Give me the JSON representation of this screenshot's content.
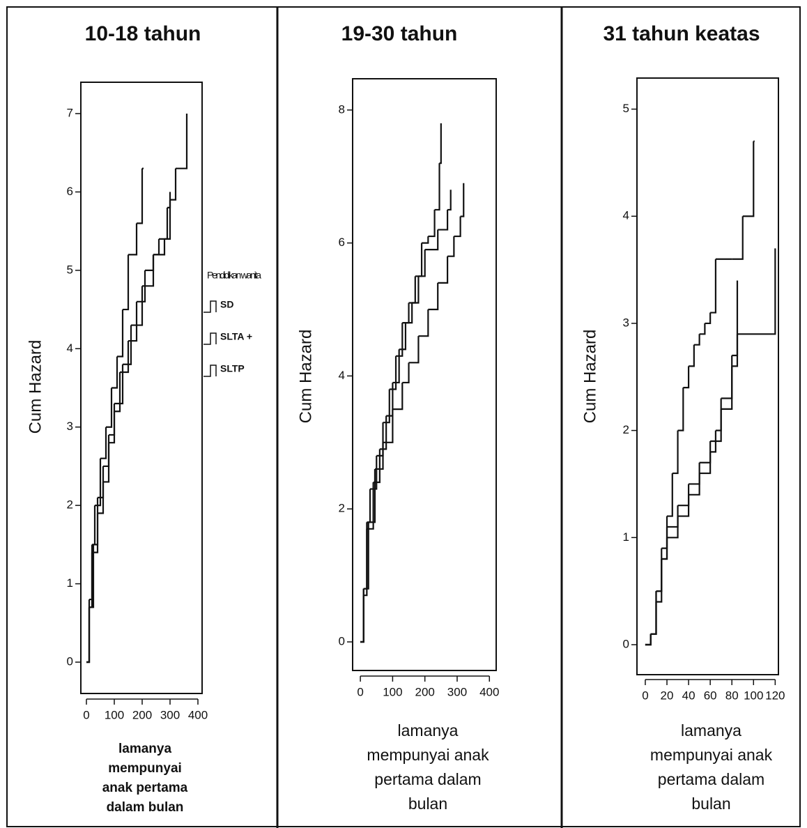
{
  "chart_data": [
    {
      "type": "step",
      "title": "10-18 tahun",
      "y_label": "Cum Hazard",
      "x_label": [
        "lamanya",
        "mempunyai",
        "anak pertama",
        "dalam bulan"
      ],
      "legend_title": "Pendidikan wanita",
      "xlim": [
        -20,
        415
      ],
      "ylim": [
        -0.4,
        7.4
      ],
      "xticks": [
        0,
        100,
        200,
        300,
        400
      ],
      "yticks": [
        0,
        1,
        2,
        3,
        4,
        5,
        6,
        7
      ],
      "series": [
        {
          "name": "SD",
          "color": "#111111",
          "x": [
            0,
            10,
            20,
            30,
            50,
            70,
            90,
            110,
            130,
            150,
            180,
            200,
            205
          ],
          "y": [
            0,
            0.8,
            1.5,
            2.0,
            2.6,
            3.0,
            3.5,
            3.9,
            4.5,
            5.2,
            5.6,
            6.3,
            6.3
          ]
        },
        {
          "name": "SLTA +",
          "color": "#111111",
          "x": [
            0,
            10,
            20,
            40,
            60,
            80,
            100,
            130,
            160,
            200,
            240,
            280,
            300,
            320,
            360
          ],
          "y": [
            0,
            0.7,
            1.4,
            2.1,
            2.5,
            2.9,
            3.3,
            3.8,
            4.3,
            4.8,
            5.2,
            5.4,
            5.9,
            6.3,
            7.0
          ]
        },
        {
          "name": "SLTP",
          "color": "#111111",
          "x": [
            0,
            10,
            25,
            40,
            60,
            80,
            100,
            120,
            150,
            180,
            210,
            240,
            260,
            290,
            300
          ],
          "y": [
            0,
            0.7,
            1.5,
            1.9,
            2.3,
            2.8,
            3.2,
            3.7,
            4.1,
            4.6,
            5.0,
            5.2,
            5.4,
            5.8,
            6.0
          ]
        }
      ]
    },
    {
      "type": "step",
      "title": "19-30 tahun",
      "y_label": "Cum Hazard",
      "x_label": [
        "lamanya",
        "mempunyai anak",
        "pertama dalam",
        "bulan"
      ],
      "xlim": [
        -24,
        421
      ],
      "ylim": [
        -0.43,
        8.47
      ],
      "xticks": [
        0,
        100,
        200,
        300,
        400
      ],
      "yticks": [
        0,
        2,
        4,
        6,
        8
      ],
      "series": [
        {
          "name": "SD",
          "color": "#111111",
          "x": [
            0,
            10,
            20,
            30,
            50,
            70,
            90,
            110,
            130,
            150,
            170,
            190,
            210,
            230,
            245,
            250
          ],
          "y": [
            0,
            0.8,
            1.8,
            2.3,
            2.8,
            3.3,
            3.8,
            4.3,
            4.8,
            5.1,
            5.5,
            6.0,
            6.1,
            6.5,
            7.2,
            7.8
          ]
        },
        {
          "name": "SLTA +",
          "color": "#111111",
          "x": [
            0,
            10,
            20,
            40,
            60,
            80,
            100,
            120,
            140,
            160,
            180,
            200,
            240,
            270,
            280
          ],
          "y": [
            0,
            0.7,
            1.7,
            2.4,
            2.9,
            3.4,
            3.9,
            4.4,
            4.8,
            5.1,
            5.5,
            5.9,
            6.2,
            6.5,
            6.8
          ]
        },
        {
          "name": "SLTP",
          "color": "#111111",
          "x": [
            0,
            10,
            25,
            45,
            70,
            100,
            130,
            150,
            180,
            210,
            240,
            270,
            290,
            310,
            320
          ],
          "y": [
            0,
            0.8,
            1.8,
            2.6,
            3.0,
            3.5,
            3.9,
            4.2,
            4.6,
            5.0,
            5.4,
            5.8,
            6.1,
            6.4,
            6.9
          ]
        }
      ]
    },
    {
      "type": "step",
      "title": "31 tahun keatas",
      "y_label": "Cum Hazard",
      "x_label": [
        "lamanya",
        "mempunyai anak",
        "pertama dalam",
        "bulan"
      ],
      "xlim": [
        -7.7,
        123
      ],
      "ylim": [
        -0.28,
        5.29
      ],
      "xticks": [
        0,
        20,
        40,
        60,
        80,
        100,
        120
      ],
      "yticks": [
        0,
        1,
        2,
        3,
        4,
        5
      ],
      "series": [
        {
          "name": "SD",
          "color": "#111111",
          "x": [
            0,
            5,
            10,
            15,
            20,
            25,
            30,
            35,
            40,
            45,
            50,
            55,
            60,
            65,
            80,
            90,
            100,
            101
          ],
          "y": [
            0,
            0.1,
            0.5,
            0.9,
            1.2,
            1.6,
            2.0,
            2.4,
            2.6,
            2.8,
            2.9,
            3.0,
            3.1,
            3.6,
            3.6,
            4.0,
            4.7,
            4.7
          ]
        },
        {
          "name": "SLTA +",
          "color": "#111111",
          "x": [
            0,
            5,
            10,
            15,
            20,
            30,
            40,
            50,
            60,
            70,
            80,
            85,
            120
          ],
          "y": [
            0,
            0.1,
            0.4,
            0.8,
            1.1,
            1.3,
            1.5,
            1.7,
            1.9,
            2.2,
            2.6,
            2.9,
            3.7
          ]
        },
        {
          "name": "SLTP",
          "color": "#111111",
          "x": [
            0,
            5,
            10,
            15,
            20,
            30,
            40,
            50,
            60,
            65,
            70,
            80,
            85
          ],
          "y": [
            0,
            0.1,
            0.5,
            0.8,
            1.0,
            1.2,
            1.4,
            1.6,
            1.8,
            2.0,
            2.3,
            2.7,
            3.4
          ]
        }
      ]
    }
  ]
}
